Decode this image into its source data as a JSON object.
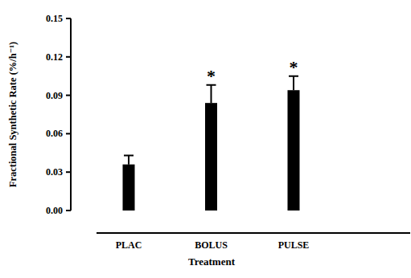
{
  "chart_data": {
    "type": "bar",
    "x_label": "Treatment",
    "y_label": "Fractional Synthetic Rate (%/h⁻¹)",
    "categories": [
      "PLAC",
      "BOLUS",
      "PULSE"
    ],
    "values": [
      0.036,
      0.084,
      0.094
    ],
    "errors": [
      0.007,
      0.014,
      0.011
    ],
    "annotations": [
      null,
      "*",
      "*"
    ],
    "color": "#000000",
    "ylim": [
      0,
      0.15
    ],
    "yticks": [
      {
        "value": 0,
        "label": "0.00"
      },
      {
        "value": 0.03,
        "label": "0.03"
      },
      {
        "value": 0.06,
        "label": "0.06"
      },
      {
        "value": 0.09,
        "label": "0.09"
      },
      {
        "value": 0.12,
        "label": "0.12"
      },
      {
        "value": 0.15,
        "label": "0.15"
      }
    ],
    "grid": false
  }
}
